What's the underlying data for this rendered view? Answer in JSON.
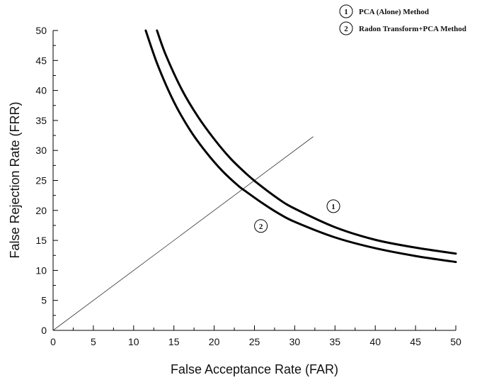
{
  "chart_data": {
    "type": "line",
    "xlabel": "False Acceptance Rate (FAR)",
    "ylabel": "False Rejection Rate (FRR)",
    "xlim": [
      0,
      50
    ],
    "ylim": [
      0,
      50
    ],
    "xticks": [
      0,
      5,
      10,
      15,
      20,
      25,
      30,
      35,
      40,
      45,
      50
    ],
    "yticks": [
      0,
      5,
      10,
      15,
      20,
      25,
      30,
      35,
      40,
      45,
      50
    ],
    "grid": false,
    "legend_position": "top-right",
    "series": [
      {
        "name": "PCA (Alone) Method",
        "marker": "1",
        "x": [
          12.9,
          14,
          16,
          18,
          20,
          22,
          24,
          25.5,
          28,
          30,
          35,
          40,
          45,
          50
        ],
        "y": [
          50,
          45.9,
          40.1,
          35.6,
          31.9,
          28.7,
          26.1,
          24.4,
          21.9,
          20.3,
          17.2,
          15.1,
          13.8,
          12.8
        ]
      },
      {
        "name": "Radon Transform+PCA Method",
        "marker": "2",
        "x": [
          11.5,
          13,
          15,
          17,
          19,
          21,
          23,
          24,
          26,
          28,
          30,
          35,
          40,
          45,
          50
        ],
        "y": [
          50,
          44.2,
          38.1,
          33.4,
          29.7,
          26.6,
          24.1,
          23.1,
          21.2,
          19.5,
          18.1,
          15.5,
          13.7,
          12.4,
          11.4
        ]
      }
    ],
    "reference_line": {
      "x": [
        0,
        32.3
      ],
      "y": [
        0,
        32.3
      ]
    },
    "curve_labels": [
      {
        "text": "1",
        "x": 34.8,
        "y": 20.7
      },
      {
        "text": "2",
        "x": 25.8,
        "y": 17.4
      }
    ]
  }
}
